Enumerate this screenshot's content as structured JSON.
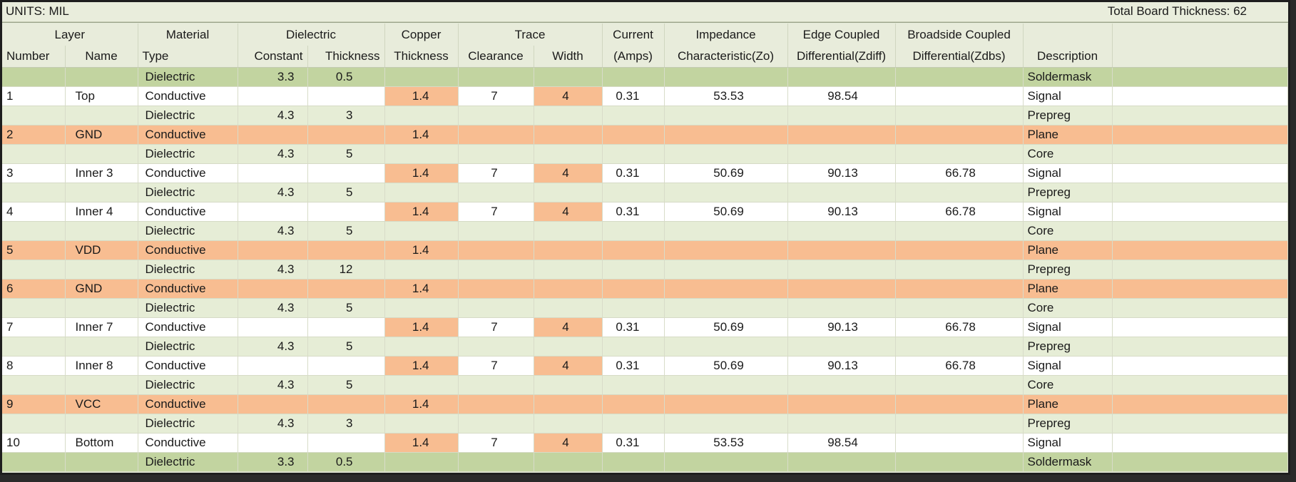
{
  "units_label": "UNITS: MIL",
  "total_thickness_label": "Total Board Thickness: 62",
  "group_headers": [
    "Layer",
    "Material",
    "Dielectric",
    "Copper",
    "Trace",
    "Current",
    "Impedance",
    "Edge Coupled",
    "Broadside Coupled",
    ""
  ],
  "column_headers": [
    "Number",
    "Name",
    "Type",
    "Constant",
    "Thickness",
    "Thickness",
    "Clearance",
    "Width",
    "(Amps)",
    "Characteristic(Zo)",
    "Differential(Zdiff)",
    "Differential(Zdbs)",
    "Description"
  ],
  "colors": {
    "dielectric_row": "#e6edd6",
    "soldermask_row": "#c2d4a0",
    "signal_row": "#ffffff",
    "plane_row": "#f8bd91",
    "highlight_cell": "#f8bd91"
  },
  "rows": [
    {
      "kind": "mask",
      "number": "",
      "name": "",
      "type": "Dielectric",
      "constant": "3.3",
      "diel_thickness": "0.5",
      "cu_thickness": "",
      "clearance": "",
      "width": "",
      "amps": "",
      "zo": "",
      "zdiff": "",
      "zdbs": "",
      "description": "Soldermask"
    },
    {
      "kind": "sig",
      "number": "1",
      "name": "Top",
      "type": "Conductive",
      "constant": "",
      "diel_thickness": "",
      "cu_thickness": "1.4",
      "clearance": "7",
      "width": "4",
      "amps": "0.31",
      "zo": "53.53",
      "zdiff": "98.54",
      "zdbs": "",
      "description": "Signal"
    },
    {
      "kind": "diel",
      "number": "",
      "name": "",
      "type": "Dielectric",
      "constant": "4.3",
      "diel_thickness": "3",
      "cu_thickness": "",
      "clearance": "",
      "width": "",
      "amps": "",
      "zo": "",
      "zdiff": "",
      "zdbs": "",
      "description": "Prepreg"
    },
    {
      "kind": "plane",
      "number": "2",
      "name": "GND",
      "type": "Conductive",
      "constant": "",
      "diel_thickness": "",
      "cu_thickness": "1.4",
      "clearance": "",
      "width": "",
      "amps": "",
      "zo": "",
      "zdiff": "",
      "zdbs": "",
      "description": "Plane"
    },
    {
      "kind": "diel",
      "number": "",
      "name": "",
      "type": "Dielectric",
      "constant": "4.3",
      "diel_thickness": "5",
      "cu_thickness": "",
      "clearance": "",
      "width": "",
      "amps": "",
      "zo": "",
      "zdiff": "",
      "zdbs": "",
      "description": "Core"
    },
    {
      "kind": "sig",
      "number": "3",
      "name": "Inner 3",
      "type": "Conductive",
      "constant": "",
      "diel_thickness": "",
      "cu_thickness": "1.4",
      "clearance": "7",
      "width": "4",
      "amps": "0.31",
      "zo": "50.69",
      "zdiff": "90.13",
      "zdbs": "66.78",
      "description": "Signal"
    },
    {
      "kind": "diel",
      "number": "",
      "name": "",
      "type": "Dielectric",
      "constant": "4.3",
      "diel_thickness": "5",
      "cu_thickness": "",
      "clearance": "",
      "width": "",
      "amps": "",
      "zo": "",
      "zdiff": "",
      "zdbs": "",
      "description": "Prepreg"
    },
    {
      "kind": "sig",
      "number": "4",
      "name": "Inner 4",
      "type": "Conductive",
      "constant": "",
      "diel_thickness": "",
      "cu_thickness": "1.4",
      "clearance": "7",
      "width": "4",
      "amps": "0.31",
      "zo": "50.69",
      "zdiff": "90.13",
      "zdbs": "66.78",
      "description": "Signal"
    },
    {
      "kind": "diel",
      "number": "",
      "name": "",
      "type": "Dielectric",
      "constant": "4.3",
      "diel_thickness": "5",
      "cu_thickness": "",
      "clearance": "",
      "width": "",
      "amps": "",
      "zo": "",
      "zdiff": "",
      "zdbs": "",
      "description": "Core"
    },
    {
      "kind": "plane",
      "number": "5",
      "name": "VDD",
      "type": "Conductive",
      "constant": "",
      "diel_thickness": "",
      "cu_thickness": "1.4",
      "clearance": "",
      "width": "",
      "amps": "",
      "zo": "",
      "zdiff": "",
      "zdbs": "",
      "description": "Plane"
    },
    {
      "kind": "diel",
      "number": "",
      "name": "",
      "type": "Dielectric",
      "constant": "4.3",
      "diel_thickness": "12",
      "cu_thickness": "",
      "clearance": "",
      "width": "",
      "amps": "",
      "zo": "",
      "zdiff": "",
      "zdbs": "",
      "description": "Prepreg"
    },
    {
      "kind": "plane",
      "number": "6",
      "name": "GND",
      "type": "Conductive",
      "constant": "",
      "diel_thickness": "",
      "cu_thickness": "1.4",
      "clearance": "",
      "width": "",
      "amps": "",
      "zo": "",
      "zdiff": "",
      "zdbs": "",
      "description": "Plane"
    },
    {
      "kind": "diel",
      "number": "",
      "name": "",
      "type": "Dielectric",
      "constant": "4.3",
      "diel_thickness": "5",
      "cu_thickness": "",
      "clearance": "",
      "width": "",
      "amps": "",
      "zo": "",
      "zdiff": "",
      "zdbs": "",
      "description": "Core"
    },
    {
      "kind": "sig",
      "number": "7",
      "name": "Inner 7",
      "type": "Conductive",
      "constant": "",
      "diel_thickness": "",
      "cu_thickness": "1.4",
      "clearance": "7",
      "width": "4",
      "amps": "0.31",
      "zo": "50.69",
      "zdiff": "90.13",
      "zdbs": "66.78",
      "description": "Signal"
    },
    {
      "kind": "diel",
      "number": "",
      "name": "",
      "type": "Dielectric",
      "constant": "4.3",
      "diel_thickness": "5",
      "cu_thickness": "",
      "clearance": "",
      "width": "",
      "amps": "",
      "zo": "",
      "zdiff": "",
      "zdbs": "",
      "description": "Prepreg"
    },
    {
      "kind": "sig",
      "number": "8",
      "name": "Inner 8",
      "type": "Conductive",
      "constant": "",
      "diel_thickness": "",
      "cu_thickness": "1.4",
      "clearance": "7",
      "width": "4",
      "amps": "0.31",
      "zo": "50.69",
      "zdiff": "90.13",
      "zdbs": "66.78",
      "description": "Signal"
    },
    {
      "kind": "diel",
      "number": "",
      "name": "",
      "type": "Dielectric",
      "constant": "4.3",
      "diel_thickness": "5",
      "cu_thickness": "",
      "clearance": "",
      "width": "",
      "amps": "",
      "zo": "",
      "zdiff": "",
      "zdbs": "",
      "description": "Core"
    },
    {
      "kind": "plane",
      "number": "9",
      "name": "VCC",
      "type": "Conductive",
      "constant": "",
      "diel_thickness": "",
      "cu_thickness": "1.4",
      "clearance": "",
      "width": "",
      "amps": "",
      "zo": "",
      "zdiff": "",
      "zdbs": "",
      "description": "Plane"
    },
    {
      "kind": "diel",
      "number": "",
      "name": "",
      "type": "Dielectric",
      "constant": "4.3",
      "diel_thickness": "3",
      "cu_thickness": "",
      "clearance": "",
      "width": "",
      "amps": "",
      "zo": "",
      "zdiff": "",
      "zdbs": "",
      "description": "Prepreg"
    },
    {
      "kind": "sig",
      "number": "10",
      "name": "Bottom",
      "type": "Conductive",
      "constant": "",
      "diel_thickness": "",
      "cu_thickness": "1.4",
      "clearance": "7",
      "width": "4",
      "amps": "0.31",
      "zo": "53.53",
      "zdiff": "98.54",
      "zdbs": "",
      "description": "Signal"
    },
    {
      "kind": "mask",
      "number": "",
      "name": "",
      "type": "Dielectric",
      "constant": "3.3",
      "diel_thickness": "0.5",
      "cu_thickness": "",
      "clearance": "",
      "width": "",
      "amps": "",
      "zo": "",
      "zdiff": "",
      "zdbs": "",
      "description": "Soldermask"
    }
  ]
}
